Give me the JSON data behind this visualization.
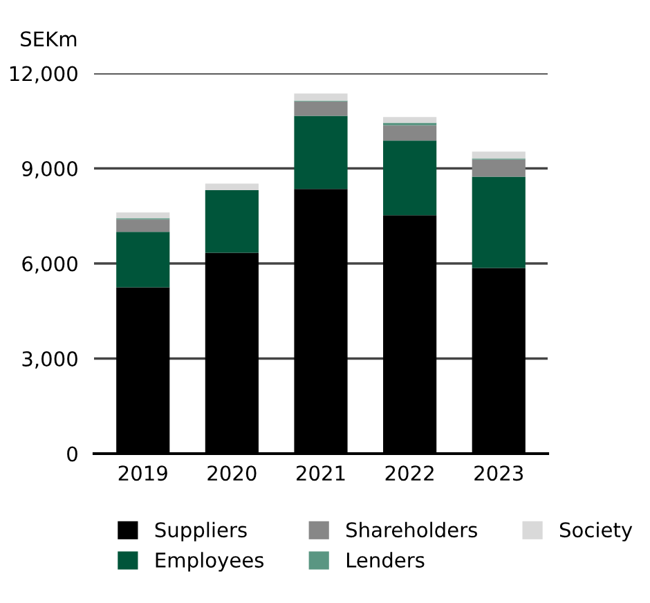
{
  "chart_data": {
    "type": "bar",
    "stacked": true,
    "ylabel": "SEKm",
    "categories": [
      "2019",
      "2020",
      "2021",
      "2022",
      "2023"
    ],
    "series": [
      {
        "name": "Suppliers",
        "color": "#000000",
        "values": [
          5250,
          6340,
          8350,
          7520,
          5860
        ]
      },
      {
        "name": "Employees",
        "color": "#00553a",
        "values": [
          1750,
          1970,
          2310,
          2360,
          2880
        ]
      },
      {
        "name": "Shareholders",
        "color": "#878787",
        "values": [
          390,
          0,
          450,
          480,
          540
        ]
      },
      {
        "name": "Lenders",
        "color": "#5a9682",
        "values": [
          40,
          0,
          30,
          80,
          30
        ]
      },
      {
        "name": "Society",
        "color": "#d9d9d9",
        "values": [
          180,
          210,
          220,
          180,
          220
        ]
      }
    ],
    "ylim": [
      0,
      12000
    ],
    "yticks": [
      {
        "value": 0,
        "label": "0"
      },
      {
        "value": 3000,
        "label": "3,000"
      },
      {
        "value": 6000,
        "label": "6,000"
      },
      {
        "value": 9000,
        "label": "9,000"
      },
      {
        "value": 12000,
        "label": "12,000"
      }
    ],
    "grid": "y",
    "legend": "bottom"
  }
}
